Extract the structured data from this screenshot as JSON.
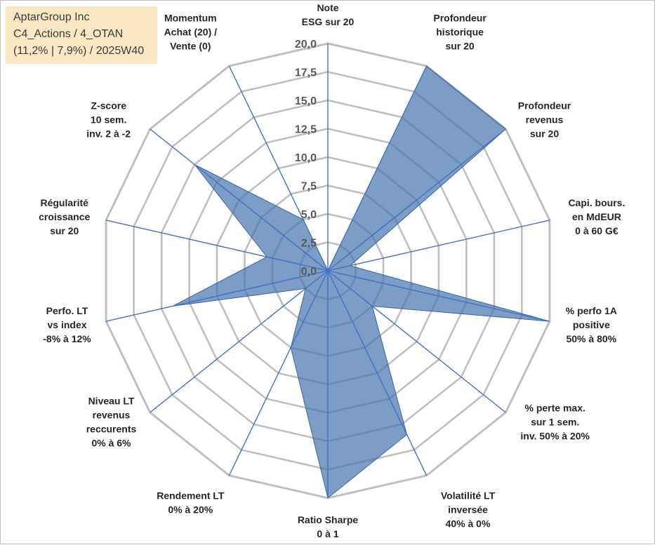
{
  "info_box": {
    "line1": "AptarGroup Inc",
    "line2": "C4_Actions / 4_OTAN",
    "line3": "(11,2% | 7,9%) / 2025W40"
  },
  "chart_data": {
    "type": "radar",
    "rlim": [
      0,
      20
    ],
    "ticks": [
      "0,0",
      "2,5",
      "5,0",
      "7,5",
      "10,0",
      "12,5",
      "15,0",
      "17,5",
      "20,0"
    ],
    "grid": true,
    "fill_color": "#4a77ae",
    "fill_opacity": 0.72,
    "axis_color": "#4472c4",
    "grid_color": "#bfbfbf",
    "axes": [
      {
        "label": [
          "Note",
          "ESG sur 20"
        ],
        "value": 0
      },
      {
        "label": [
          "Profondeur",
          "historique",
          "sur 20"
        ],
        "value": 20
      },
      {
        "label": [
          "Profondeur",
          "revenus",
          "sur 20"
        ],
        "value": 20
      },
      {
        "label": [
          "Capi. bours.",
          "en MdEUR",
          "0 à 60 G€"
        ],
        "value": 2
      },
      {
        "label": [
          "% perfo 1A",
          "positive",
          "50% à 80%"
        ],
        "value": 20
      },
      {
        "label": [
          "% perte max.",
          "sur 1 sem.",
          "inv. 50% à 20%"
        ],
        "value": 5
      },
      {
        "label": [
          "Volatilité LT",
          "inversée",
          "40% à 0%"
        ],
        "value": 16
      },
      {
        "label": [
          "Ratio Sharpe",
          "0 à 1"
        ],
        "value": 20
      },
      {
        "label": [
          "Rendement LT",
          "0% à 20%"
        ],
        "value": 7.5
      },
      {
        "label": [
          "Niveau LT",
          "revenus",
          "reccurents",
          "0% à 6%"
        ],
        "value": 2.5
      },
      {
        "label": [
          "Perfo. LT",
          "vs index",
          "-8% à 12%"
        ],
        "value": 14
      },
      {
        "label": [
          "Régularité",
          "croissance",
          "sur 20"
        ],
        "value": 5.5
      },
      {
        "label": [
          "Z-score",
          "10 sem.",
          "inv. 2 à -2"
        ],
        "value": 15
      },
      {
        "label": [
          "Momentum",
          "Achat (20) /",
          "Vente (0)"
        ],
        "value": 5
      }
    ]
  }
}
